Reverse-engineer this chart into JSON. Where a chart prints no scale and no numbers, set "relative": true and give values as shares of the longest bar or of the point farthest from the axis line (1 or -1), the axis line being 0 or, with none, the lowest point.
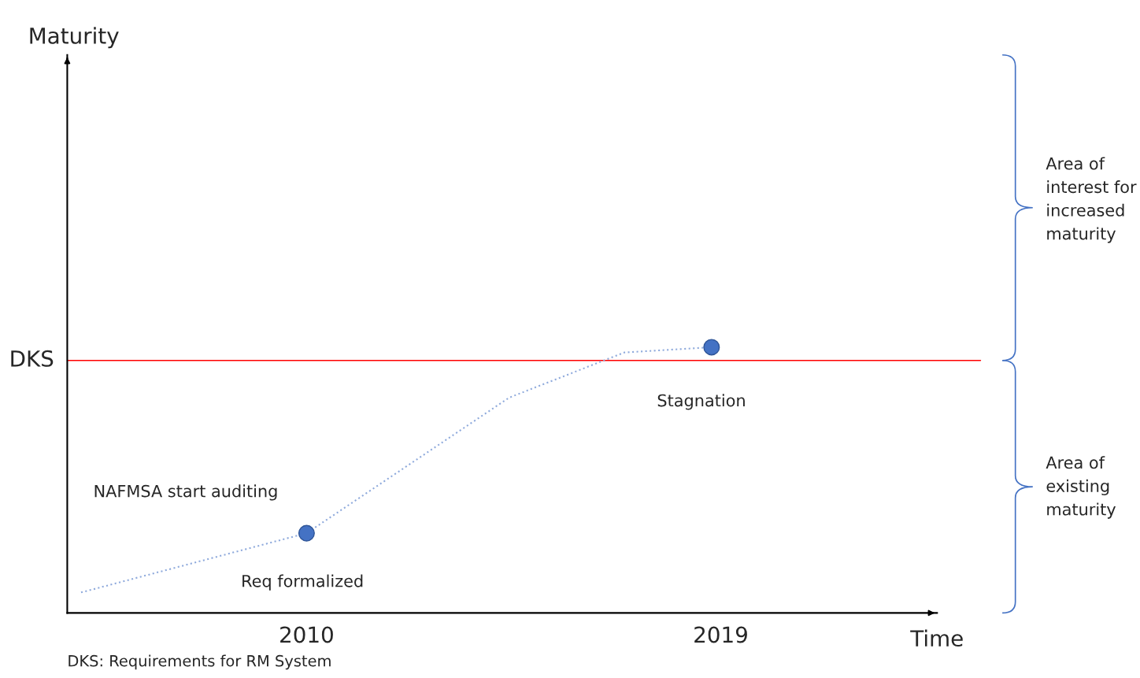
{
  "chart_data": {
    "type": "line",
    "relative": true,
    "xlabel": "Time",
    "xlim": [
      2004.8,
      2023.7
    ],
    "xticks": [
      2010,
      2019
    ],
    "grid": false,
    "series": [
      {
        "type": "line",
        "color": "#8faadc",
        "line_style": "dotted",
        "marker": "none",
        "x": [
          2005.1,
          2010.0,
          2014.4,
          2016.9,
          2018.8
        ],
        "values": [
          0.077,
          0.3,
          0.81,
          0.98,
          1.0
        ]
      },
      {
        "type": "scatter",
        "color": "#4472c4",
        "marker": "circle",
        "x": [
          2010.0,
          2018.8
        ],
        "values": [
          0.3,
          1.0
        ]
      }
    ],
    "ref_lines": [
      {
        "axis": "y",
        "value": 0.95,
        "label": "DKS",
        "color": "#ff0000"
      }
    ],
    "annotations": [
      "NAFMSA start auditing",
      {
        "text": "Req formalized",
        "x": 2010.0,
        "y": 0.3
      },
      {
        "text": "Stagnation",
        "x": 2018.8,
        "y": 1.0
      },
      "DKS: Requirements for RM System",
      "Maturity",
      "Area of interest for increased maturity",
      "Area of existing maturity"
    ]
  }
}
